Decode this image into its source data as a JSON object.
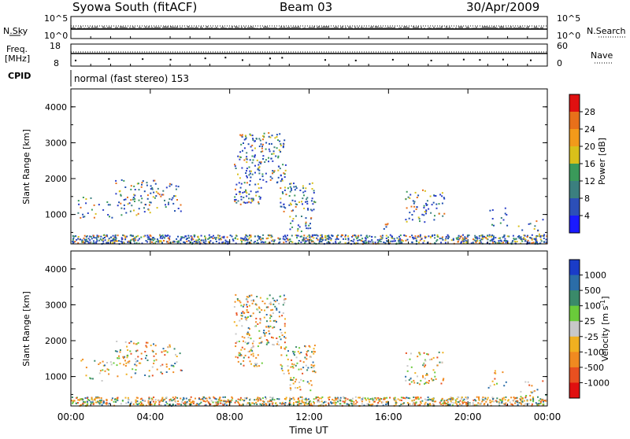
{
  "header": {
    "station": "Syowa South (fitACF)",
    "beam": "Beam 03",
    "date": "30/Apr/2009"
  },
  "top_labels": {
    "nsky": "N.Sky",
    "nsky_ticks": [
      "10^5",
      "10^0"
    ],
    "nsearch": "N.Search",
    "nsearch_ticks": [
      "10^5",
      "10^0"
    ],
    "freq_line1": "Freq.",
    "freq_line2": "[MHz]",
    "freq_ticks": [
      "18",
      "8"
    ],
    "nave": "Nave",
    "nave_ticks": [
      "60",
      "0"
    ],
    "cpid": "CPID",
    "cpid_text": "normal (fast stereo) 153"
  },
  "chart_data": [
    {
      "type": "heatmap",
      "name": "power",
      "ylabel": "Slant Range [km]",
      "xlabel": "",
      "ylim": [
        180,
        4500
      ],
      "y_ticks": [
        "1000",
        "2000",
        "3000",
        "4000"
      ],
      "colorbar_label": "Power [dB]",
      "colorbar_ticks": [
        "4",
        "8",
        "12",
        "16",
        "20",
        "24",
        "28"
      ],
      "colorbar_colors": [
        "#1a1aff",
        "#2c4fb8",
        "#3b7f7f",
        "#3a9a5a",
        "#d9c01a",
        "#f29a1a",
        "#e8701a",
        "#e01010"
      ],
      "scatter_regions_hours_km": [
        [
          0.3,
          2.2,
          900,
          1500,
          0.18
        ],
        [
          2.2,
          4.2,
          1000,
          2000,
          0.3
        ],
        [
          4.2,
          5.6,
          1100,
          1900,
          0.25
        ],
        [
          5.4,
          5.6,
          1000,
          1200,
          0.3
        ],
        [
          8.2,
          9.6,
          1300,
          3300,
          0.4
        ],
        [
          9.6,
          10.8,
          1900,
          3300,
          0.4
        ],
        [
          10.5,
          12.3,
          1100,
          1900,
          0.4
        ],
        [
          11.0,
          12.1,
          550,
          1000,
          0.4
        ],
        [
          15.6,
          16.0,
          600,
          1100,
          0.25
        ],
        [
          16.8,
          18.8,
          800,
          1700,
          0.3
        ],
        [
          21.0,
          22.0,
          700,
          1200,
          0.2
        ],
        [
          22.5,
          24.0,
          350,
          900,
          0.15
        ]
      ],
      "colorbar_range": [
        0,
        32
      ]
    },
    {
      "type": "heatmap",
      "name": "velocity",
      "ylabel": "Slant Range [km]",
      "xlabel": "Time UT",
      "ylim": [
        180,
        4500
      ],
      "y_ticks": [
        "1000",
        "2000",
        "3000",
        "4000"
      ],
      "x_ticks": [
        "00:00",
        "04:00",
        "08:00",
        "12:00",
        "16:00",
        "20:00",
        "00:00"
      ],
      "xlim_hours": [
        0,
        24
      ],
      "colorbar_label": "Velocity [m s^-1]",
      "colorbar_ticks": [
        "1000",
        "500",
        "100",
        "25",
        "-25",
        "-100",
        "-500",
        "-1000"
      ],
      "colorbar_colors": [
        "#1a3cc8",
        "#2b6da8",
        "#3a8a6a",
        "#6acb3a",
        "#c8c8c8",
        "#f0b020",
        "#f08a20",
        "#e85020",
        "#e01010"
      ],
      "scatter_regions_hours_km": [
        [
          0.3,
          2.2,
          900,
          1500,
          0.18
        ],
        [
          2.2,
          4.2,
          1000,
          2000,
          0.3
        ],
        [
          4.2,
          5.6,
          1100,
          1900,
          0.25
        ],
        [
          8.2,
          9.6,
          1300,
          3300,
          0.4
        ],
        [
          9.6,
          10.8,
          1900,
          3300,
          0.4
        ],
        [
          10.5,
          12.3,
          1100,
          1900,
          0.4
        ],
        [
          11.0,
          12.1,
          550,
          1000,
          0.4
        ],
        [
          16.8,
          18.8,
          800,
          1700,
          0.3
        ],
        [
          21.0,
          22.0,
          700,
          1200,
          0.2
        ],
        [
          22.5,
          24.0,
          350,
          900,
          0.15
        ]
      ]
    }
  ]
}
